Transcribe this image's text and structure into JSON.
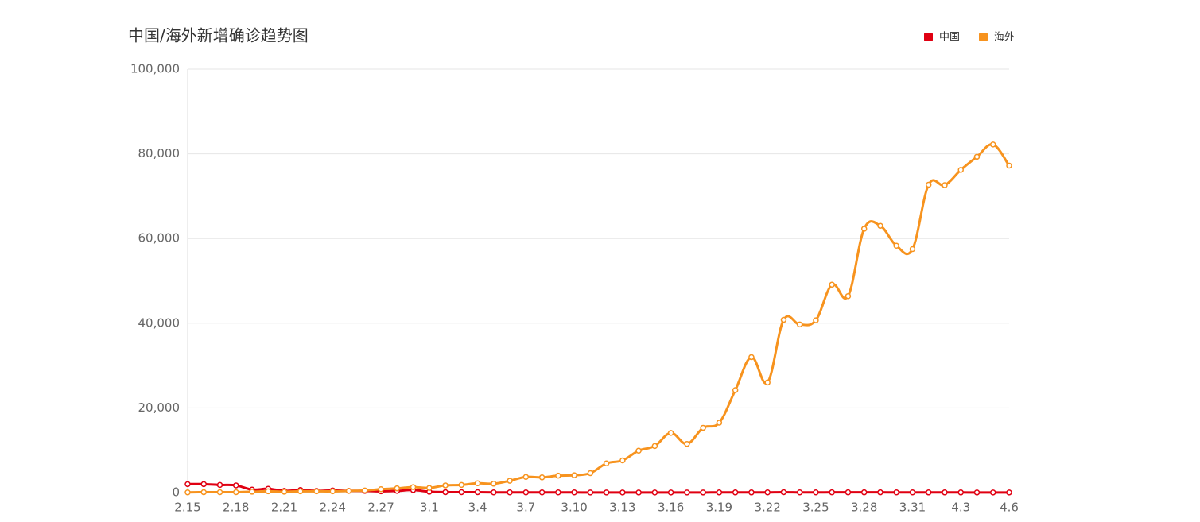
{
  "chart_data": {
    "type": "line",
    "title": "中国/海外新增确诊趋势图",
    "categories": [
      "2.15",
      null,
      null,
      "2.18",
      null,
      null,
      "2.21",
      null,
      null,
      "2.24",
      null,
      null,
      "2.27",
      null,
      null,
      "3.1",
      null,
      null,
      "3.4",
      null,
      null,
      "3.7",
      null,
      null,
      "3.10",
      null,
      null,
      "3.13",
      null,
      null,
      "3.16",
      null,
      null,
      "3.19",
      null,
      null,
      "3.22",
      null,
      null,
      "3.25",
      null,
      null,
      "3.28",
      null,
      null,
      "3.31",
      null,
      null,
      "4.3",
      null,
      null,
      "4.6"
    ],
    "series": [
      {
        "name": "中国",
        "color": "#e00012",
        "values": [
          2000,
          2000,
          1800,
          1700,
          700,
          900,
          400,
          600,
          400,
          500,
          400,
          400,
          300,
          400,
          600,
          200,
          100,
          100,
          100,
          50,
          50,
          50,
          50,
          50,
          50,
          20,
          20,
          20,
          20,
          20,
          30,
          20,
          30,
          40,
          40,
          40,
          50,
          100,
          50,
          50,
          60,
          60,
          60,
          60,
          50,
          50,
          40,
          40,
          40,
          30,
          30,
          30
        ]
      },
      {
        "name": "海外",
        "color": "#f7931e",
        "values": [
          50,
          100,
          100,
          100,
          200,
          300,
          200,
          300,
          300,
          300,
          400,
          500,
          800,
          1000,
          1300,
          1100,
          1700,
          1800,
          2200,
          2100,
          2800,
          3700,
          3600,
          4000,
          4100,
          4600,
          6900,
          7600,
          9900,
          11000,
          14100,
          11500,
          15300,
          16500,
          24200,
          32000,
          26000,
          40800,
          39700,
          40700,
          49100,
          46400,
          62300,
          63000,
          58300,
          57500,
          72700,
          72600,
          76200,
          79300,
          82200,
          77200
        ]
      }
    ],
    "ylim": [
      0,
      100000
    ],
    "yticks": [
      0,
      {
        "value": 20000,
        "label": "20,000"
      },
      {
        "value": 40000,
        "label": "40,000"
      },
      {
        "value": 60000,
        "label": "60,000"
      },
      {
        "value": 80000,
        "label": "80,000"
      },
      {
        "value": 100000,
        "label": "100,000"
      }
    ],
    "grid": true,
    "legend": "top-right"
  }
}
